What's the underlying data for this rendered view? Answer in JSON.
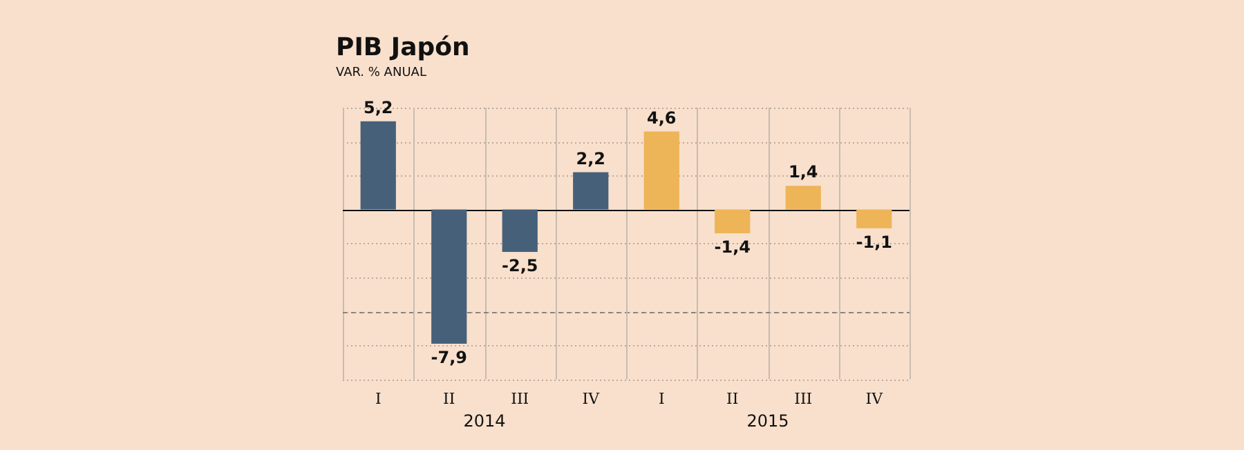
{
  "chart_data": {
    "type": "bar",
    "title": "PIB Japón",
    "subtitle": "VAR. % ANUAL",
    "categories": [
      "I",
      "II",
      "III",
      "IV",
      "I",
      "II",
      "III",
      "IV"
    ],
    "values": [
      5.2,
      -7.9,
      -2.5,
      2.2,
      4.6,
      -1.4,
      1.4,
      -1.1
    ],
    "colors": [
      "#46607a",
      "#46607a",
      "#46607a",
      "#46607a",
      "#edb458",
      "#edb458",
      "#edb458",
      "#edb458"
    ],
    "value_labels": [
      "5,2",
      "-7,9",
      "-2,5",
      "2,2",
      "4,6",
      "-1,4",
      "1,4",
      "-1,1"
    ],
    "ylim": [
      -10,
      6
    ],
    "yticks": [
      {
        "value": -10,
        "label": null
      },
      {
        "value": -8,
        "label": null
      },
      {
        "value": -6,
        "label": null
      },
      {
        "value": -4,
        "label": null
      },
      {
        "value": -2,
        "label": null
      },
      {
        "value": 0,
        "label": null
      },
      {
        "value": 2,
        "label": null
      },
      {
        "value": 4,
        "label": null
      },
      {
        "value": 6,
        "label": null
      }
    ],
    "ref_lines": [
      {
        "axis": "y",
        "value": -6,
        "color": "#8a8078",
        "line_style": "dashed"
      }
    ],
    "annotations": [
      "2014",
      "2015"
    ],
    "grid": true,
    "legend": false,
    "tick_labels": "x"
  }
}
